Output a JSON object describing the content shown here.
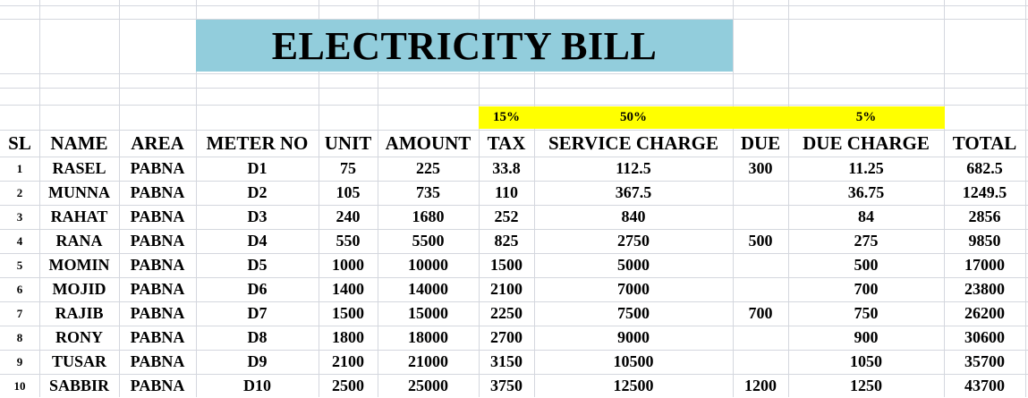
{
  "title": "ELECTRICITY BILL",
  "rates": {
    "tax": "15%",
    "service_charge": "50%",
    "due_charge": "5%"
  },
  "headers": [
    "SL",
    "NAME",
    "AREA",
    "METER NO",
    "UNIT",
    "AMOUNT",
    "TAX",
    "SERVICE CHARGE",
    "DUE",
    "DUE CHARGE",
    "TOTAL"
  ],
  "rows": [
    [
      "1",
      "RASEL",
      "PABNA",
      "D1",
      "75",
      "225",
      "33.8",
      "112.5",
      "300",
      "11.25",
      "682.5"
    ],
    [
      "2",
      "MUNNA",
      "PABNA",
      "D2",
      "105",
      "735",
      "110",
      "367.5",
      "",
      "36.75",
      "1249.5"
    ],
    [
      "3",
      "RAHAT",
      "PABNA",
      "D3",
      "240",
      "1680",
      "252",
      "840",
      "",
      "84",
      "2856"
    ],
    [
      "4",
      "RANA",
      "PABNA",
      "D4",
      "550",
      "5500",
      "825",
      "2750",
      "500",
      "275",
      "9850"
    ],
    [
      "5",
      "MOMIN",
      "PABNA",
      "D5",
      "1000",
      "10000",
      "1500",
      "5000",
      "",
      "500",
      "17000"
    ],
    [
      "6",
      "MOJID",
      "PABNA",
      "D6",
      "1400",
      "14000",
      "2100",
      "7000",
      "",
      "700",
      "23800"
    ],
    [
      "7",
      "RAJIB",
      "PABNA",
      "D7",
      "1500",
      "15000",
      "2250",
      "7500",
      "700",
      "750",
      "26200"
    ],
    [
      "8",
      "RONY",
      "PABNA",
      "D8",
      "1800",
      "18000",
      "2700",
      "9000",
      "",
      "900",
      "30600"
    ],
    [
      "9",
      "TUSAR",
      "PABNA",
      "D9",
      "2100",
      "21000",
      "3150",
      "10500",
      "",
      "1050",
      "35700"
    ],
    [
      "10",
      "SABBIR",
      "PABNA",
      "D10",
      "2500",
      "25000",
      "3750",
      "12500",
      "1200",
      "1250",
      "43700"
    ]
  ],
  "colors": {
    "title_fill": "#92cddc",
    "rate_fill": "#ffff00",
    "gridline": "#d4d7de"
  }
}
